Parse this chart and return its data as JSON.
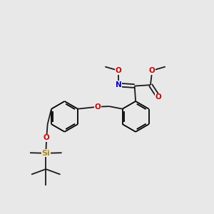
{
  "background_color": "#e8e8e8",
  "bond_color": "#1a1a1a",
  "oxygen_color": "#cc0000",
  "nitrogen_color": "#0000cc",
  "silicon_color": "#b8860b",
  "figsize": [
    3.0,
    3.0
  ],
  "dpi": 100,
  "xlim": [
    0,
    1
  ],
  "ylim": [
    0,
    1
  ]
}
